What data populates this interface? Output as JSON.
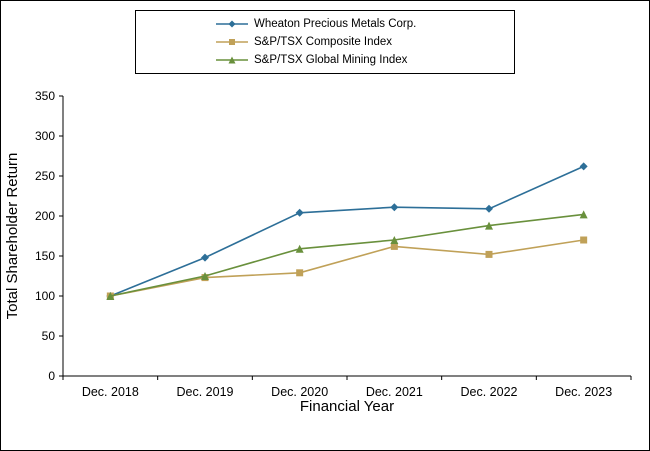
{
  "chart_data": {
    "type": "line",
    "categories": [
      "Dec. 2018",
      "Dec. 2019",
      "Dec. 2020",
      "Dec. 2021",
      "Dec. 2022",
      "Dec. 2023"
    ],
    "series": [
      {
        "name": "Wheaton Precious Metals Corp.",
        "color": "#2d6f98",
        "marker": "diamond",
        "values": [
          100,
          148,
          204,
          211,
          209,
          262
        ]
      },
      {
        "name": "S&P/TSX Composite Index",
        "color": "#c0a158",
        "marker": "square",
        "values": [
          100,
          123,
          129,
          162,
          152,
          170
        ]
      },
      {
        "name": "S&P/TSX Global Mining Index",
        "color": "#69903c",
        "marker": "triangle",
        "values": [
          100,
          125,
          159,
          170,
          188,
          202
        ]
      }
    ],
    "xlabel": "Financial Year",
    "ylabel": "Total Shareholder Return",
    "ylim": [
      0,
      350
    ],
    "ytick_step": 50,
    "grid": false,
    "legend_position": "top",
    "axis_color": "#000000",
    "background_color": "#ffffff"
  }
}
